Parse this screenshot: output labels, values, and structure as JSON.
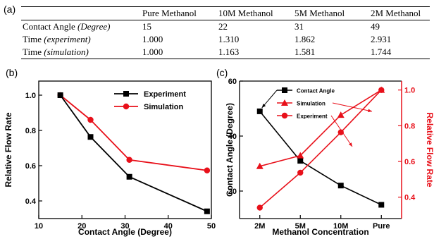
{
  "panel_labels": {
    "a": "(a)",
    "b": "(b)",
    "c": "(c)"
  },
  "table": {
    "headers": [
      "",
      "Pure Methanol",
      "10M Methanol",
      "5M Methanol",
      "2M Methanol"
    ],
    "rows": [
      {
        "label": "Contact Angle",
        "label_italic": "(Degree)",
        "values": [
          "15",
          "22",
          "31",
          "49"
        ]
      },
      {
        "label": "Time",
        "label_italic": "(experiment)",
        "values": [
          "1.000",
          "1.310",
          "1.862",
          "2.931"
        ]
      },
      {
        "label": "Time",
        "label_italic": "(simulation)",
        "values": [
          "1.000",
          "1.163",
          "1.581",
          "1.744"
        ]
      }
    ]
  },
  "colors": {
    "black": "#000000",
    "red": "#e8101a"
  },
  "chart_data": [
    {
      "type": "line",
      "panel": "b",
      "xlabel": "Contact Angle (Degree)",
      "ylabel": "Relative Flow Rate",
      "xlim": [
        10,
        50
      ],
      "ylim": [
        0.3,
        1.08
      ],
      "xticks": [
        10,
        20,
        30,
        40,
        50
      ],
      "xtick_labels": [
        "10",
        "20",
        "30",
        "40",
        "50"
      ],
      "yticks": [
        0.4,
        0.6,
        0.8,
        1.0
      ],
      "ytick_labels": [
        "0.4",
        "0.6",
        "0.8",
        "1.0"
      ],
      "legend_position": "top-right",
      "grid": false,
      "series": [
        {
          "name": "Experiment",
          "color": "#000000",
          "marker": "square",
          "x": [
            15,
            22,
            31,
            49
          ],
          "y": [
            1.0,
            0.763,
            0.537,
            0.341
          ]
        },
        {
          "name": "Simulation",
          "color": "#e8101a",
          "marker": "circle",
          "x": [
            15,
            22,
            31,
            49
          ],
          "y": [
            1.0,
            0.86,
            0.633,
            0.573
          ]
        }
      ]
    },
    {
      "type": "line",
      "panel": "c",
      "xlabel": "Methanol Concentration",
      "categories": [
        "2M",
        "5M",
        "10M",
        "Pure"
      ],
      "ylabel_left": "Contact Angle (Degree)",
      "ylim_left": [
        10,
        60
      ],
      "yticks_left": [
        20,
        40,
        60
      ],
      "ytick_labels_left": [
        "20",
        "40",
        "60"
      ],
      "ylabel_right": "Relative Flow Rate",
      "ylim_right": [
        0.28,
        1.05
      ],
      "yticks_right": [
        0.4,
        0.6,
        0.8,
        1.0
      ],
      "ytick_labels_right": [
        "0.4",
        "0.6",
        "0.8",
        "1.0"
      ],
      "legend_position": "top-left",
      "grid": false,
      "series": [
        {
          "name": "Contact Angle",
          "axis": "left",
          "color": "#000000",
          "marker": "square",
          "values": [
            49,
            31,
            22,
            15
          ]
        },
        {
          "name": "Simulation",
          "axis": "right",
          "color": "#e8101a",
          "marker": "triangle",
          "values": [
            0.573,
            0.633,
            0.86,
            1.0
          ]
        },
        {
          "name": "Experiment",
          "axis": "right",
          "color": "#e8101a",
          "marker": "circle",
          "values": [
            0.341,
            0.537,
            0.763,
            1.0
          ]
        }
      ]
    }
  ]
}
